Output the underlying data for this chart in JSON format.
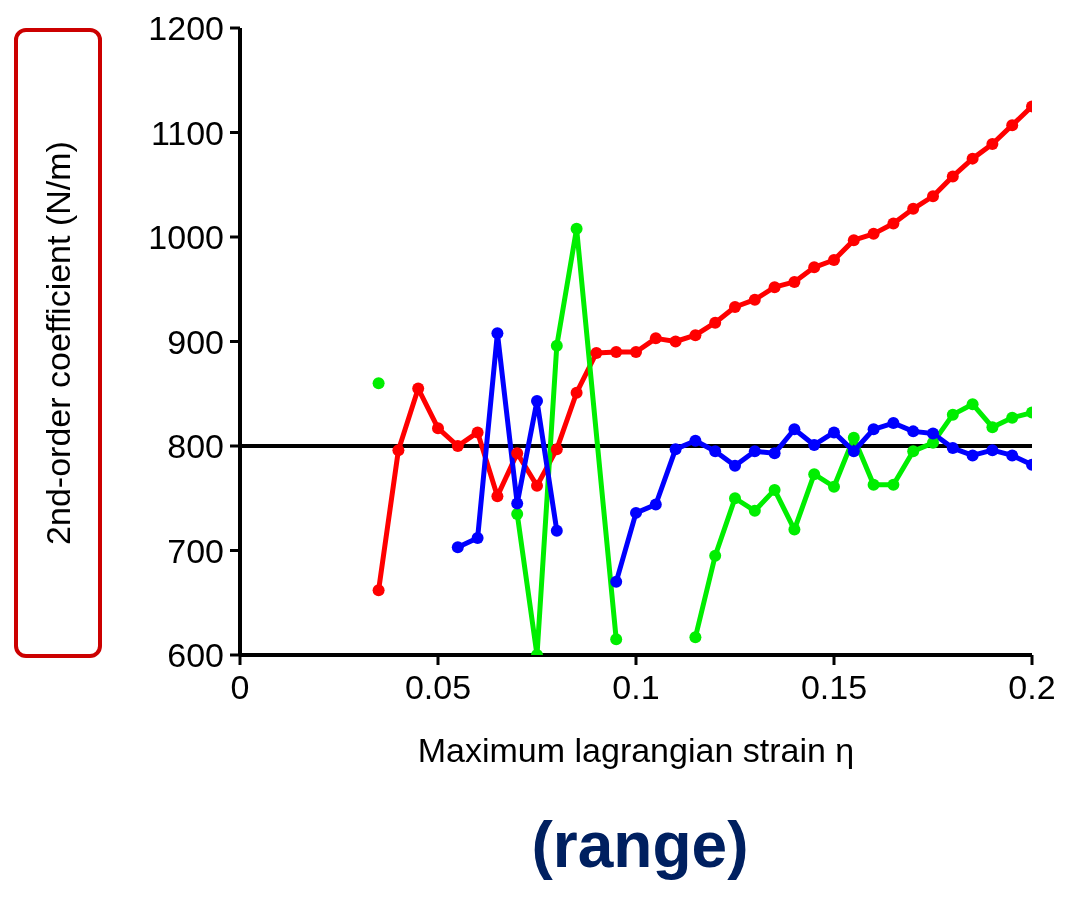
{
  "chart_data": {
    "type": "line",
    "xlabel": "Maximum lagrangian strain η",
    "ylabel": "2nd-order coefficient (N/m)",
    "annotations": [
      "(range)"
    ],
    "xlim": [
      0,
      0.2
    ],
    "xticks": [
      0,
      0.05,
      0.1,
      0.15,
      0.2
    ],
    "ylim": [
      600,
      1200
    ],
    "yticks": [
      600,
      700,
      800,
      900,
      1000,
      1100,
      1200
    ],
    "grid": false,
    "legend": false,
    "marker": "circle",
    "line_style": "solid",
    "ref_lines": [
      {
        "axis": "y",
        "value": 800,
        "color": "#000000"
      }
    ],
    "series": [
      {
        "color": "#ff0000",
        "x": [
          0.035,
          0.04,
          0.045,
          0.05,
          0.055,
          0.06,
          0.065,
          0.07,
          0.075,
          0.08,
          0.085,
          0.09,
          0.095,
          0.1,
          0.105,
          0.11,
          0.115,
          0.12,
          0.125,
          0.13,
          0.135,
          0.14,
          0.145,
          0.15,
          0.155,
          0.16,
          0.165,
          0.17,
          0.175,
          0.18,
          0.185,
          0.19,
          0.195,
          0.2
        ],
        "values": [
          662,
          796,
          855,
          817,
          800,
          813,
          752,
          793,
          762,
          797,
          851,
          889,
          890,
          890,
          903,
          900,
          906,
          918,
          933,
          940,
          952,
          957,
          971,
          978,
          997,
          1003,
          1013,
          1027,
          1039,
          1058,
          1075,
          1089,
          1107,
          1125
        ]
      },
      {
        "color": "#00ee00",
        "x": [
          0.035,
          0.05,
          0.07,
          0.075,
          0.08,
          0.085,
          0.095,
          0.105,
          0.115,
          0.12,
          0.125,
          0.13,
          0.135,
          0.14,
          0.145,
          0.15,
          0.155,
          0.16,
          0.165,
          0.17,
          0.175,
          0.18,
          0.185,
          0.19,
          0.195,
          0.2
        ],
        "values": [
          860,
          null,
          735,
          600,
          896,
          1008,
          615,
          null,
          617,
          695,
          750,
          738,
          758,
          720,
          773,
          761,
          808,
          763,
          763,
          795,
          803,
          830,
          840,
          818,
          827,
          832
        ]
      },
      {
        "color": "#0000ff",
        "x": [
          0.055,
          0.06,
          0.065,
          0.07,
          0.075,
          0.08,
          0.09,
          0.095,
          0.1,
          0.105,
          0.11,
          0.115,
          0.12,
          0.125,
          0.13,
          0.135,
          0.14,
          0.145,
          0.15,
          0.155,
          0.16,
          0.165,
          0.17,
          0.175,
          0.18,
          0.185,
          0.19,
          0.195,
          0.2
        ],
        "values": [
          703,
          712,
          908,
          745,
          843,
          719,
          null,
          670,
          736,
          744,
          797,
          805,
          795,
          781,
          795,
          793,
          816,
          801,
          813,
          795,
          816,
          822,
          814,
          812,
          798,
          791,
          796,
          791,
          782
        ]
      }
    ]
  }
}
